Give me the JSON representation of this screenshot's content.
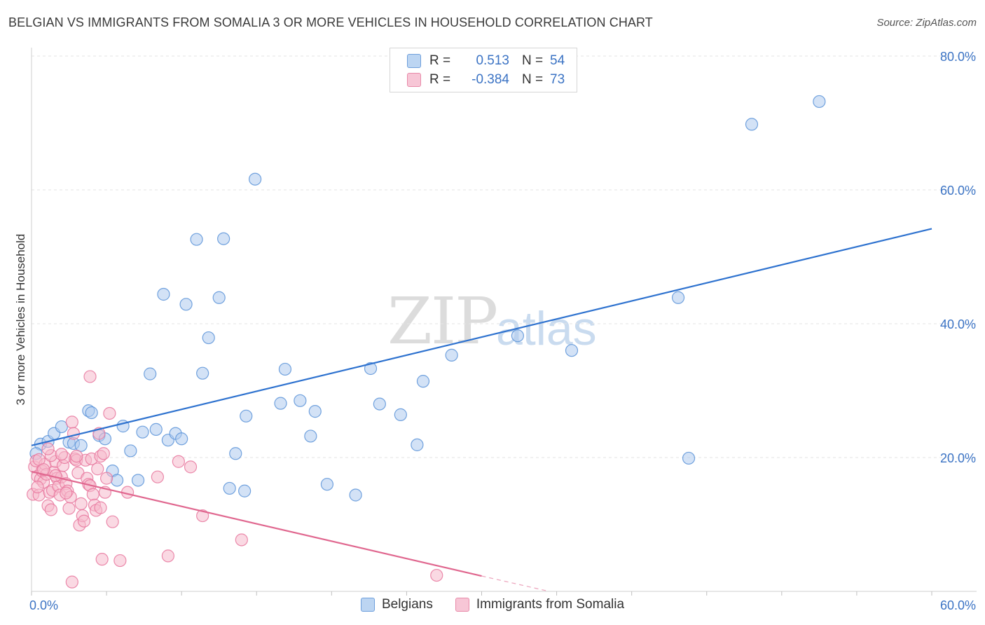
{
  "title": "BELGIAN VS IMMIGRANTS FROM SOMALIA 3 OR MORE VEHICLES IN HOUSEHOLD CORRELATION CHART",
  "source": "Source: ZipAtlas.com",
  "watermark": {
    "zip": "ZIP",
    "atlas": "atlas"
  },
  "colors": {
    "belgians_fill": "#aecbee",
    "belgians_stroke": "#5b93d8",
    "belgians_line": "#2e72cf",
    "somalia_fill": "#f5b9cc",
    "somalia_stroke": "#e8779d",
    "somalia_line": "#e0678f",
    "grid": "#e3e3e3",
    "tick_label": "#3b73c4"
  },
  "legend_top": {
    "rows": [
      {
        "r_label": "R =",
        "r_value": "0.513",
        "n_label": "N =",
        "n_value": "54"
      },
      {
        "r_label": "R =",
        "r_value": "-0.384",
        "n_label": "N =",
        "n_value": "73"
      }
    ]
  },
  "legend_bottom": [
    "Belgians",
    "Immigrants from Somalia"
  ],
  "chart_data": {
    "type": "scatter",
    "xlabel": "",
    "ylabel": "3 or more Vehicles in Household",
    "xlim": [
      0,
      60
    ],
    "ylim": [
      0,
      80
    ],
    "x_tick_labels": [
      {
        "value": 0,
        "label": "0.0%"
      },
      {
        "value": 60,
        "label": "60.0%"
      }
    ],
    "y_tick_labels": [
      {
        "value": 20,
        "label": "20.0%"
      },
      {
        "value": 40,
        "label": "40.0%"
      },
      {
        "value": 60,
        "label": "60.0%"
      },
      {
        "value": 80,
        "label": "80.0%"
      }
    ],
    "grid": true,
    "series": [
      {
        "name": "Belgians",
        "points": [
          [
            0.6,
            22.0
          ],
          [
            1.1,
            22.4
          ],
          [
            1.5,
            23.6
          ],
          [
            2.0,
            24.6
          ],
          [
            2.5,
            22.3
          ],
          [
            2.8,
            22.1
          ],
          [
            3.3,
            21.8
          ],
          [
            3.8,
            27.0
          ],
          [
            4.0,
            26.7
          ],
          [
            4.5,
            23.3
          ],
          [
            4.9,
            22.8
          ],
          [
            5.4,
            18.0
          ],
          [
            5.7,
            16.6
          ],
          [
            6.1,
            24.7
          ],
          [
            6.6,
            21.0
          ],
          [
            7.1,
            16.6
          ],
          [
            7.4,
            23.8
          ],
          [
            7.9,
            32.5
          ],
          [
            8.3,
            24.2
          ],
          [
            8.8,
            44.4
          ],
          [
            9.1,
            22.6
          ],
          [
            9.6,
            23.6
          ],
          [
            10.0,
            22.8
          ],
          [
            10.3,
            42.9
          ],
          [
            11.0,
            52.6
          ],
          [
            11.4,
            32.6
          ],
          [
            11.8,
            37.9
          ],
          [
            12.5,
            43.9
          ],
          [
            12.8,
            52.7
          ],
          [
            13.2,
            15.4
          ],
          [
            13.6,
            20.6
          ],
          [
            14.2,
            15.0
          ],
          [
            14.3,
            26.2
          ],
          [
            14.9,
            61.6
          ],
          [
            16.6,
            28.1
          ],
          [
            16.9,
            33.2
          ],
          [
            17.9,
            28.5
          ],
          [
            18.6,
            23.2
          ],
          [
            18.9,
            26.9
          ],
          [
            19.7,
            16.0
          ],
          [
            21.6,
            14.4
          ],
          [
            22.6,
            33.3
          ],
          [
            23.2,
            28.0
          ],
          [
            24.6,
            26.4
          ],
          [
            25.7,
            21.9
          ],
          [
            26.1,
            31.4
          ],
          [
            28.0,
            35.3
          ],
          [
            32.4,
            38.2
          ],
          [
            36.0,
            36.0
          ],
          [
            43.1,
            43.9
          ],
          [
            43.8,
            19.9
          ],
          [
            48.0,
            69.8
          ],
          [
            52.5,
            73.2
          ],
          [
            0.3,
            20.6
          ]
        ]
      },
      {
        "name": "Immigrants from Somalia",
        "points": [
          [
            0.1,
            14.5
          ],
          [
            0.2,
            18.6
          ],
          [
            0.3,
            19.5
          ],
          [
            0.4,
            17.2
          ],
          [
            0.5,
            14.4
          ],
          [
            0.6,
            16.8
          ],
          [
            0.7,
            18.0
          ],
          [
            0.8,
            16.3
          ],
          [
            0.9,
            19.0
          ],
          [
            1.0,
            17.5
          ],
          [
            1.1,
            12.8
          ],
          [
            1.2,
            14.8
          ],
          [
            1.3,
            12.2
          ],
          [
            1.4,
            15.1
          ],
          [
            1.5,
            17.8
          ],
          [
            1.6,
            19.4
          ],
          [
            1.7,
            16.9
          ],
          [
            1.8,
            15.7
          ],
          [
            1.9,
            14.4
          ],
          [
            2.0,
            17.1
          ],
          [
            2.1,
            18.8
          ],
          [
            2.2,
            20.0
          ],
          [
            2.3,
            16.1
          ],
          [
            2.4,
            15.0
          ],
          [
            2.5,
            12.4
          ],
          [
            2.6,
            14.1
          ],
          [
            2.7,
            25.3
          ],
          [
            2.8,
            23.6
          ],
          [
            2.9,
            19.8
          ],
          [
            3.0,
            19.6
          ],
          [
            3.1,
            17.7
          ],
          [
            3.2,
            9.9
          ],
          [
            3.3,
            13.1
          ],
          [
            3.4,
            11.3
          ],
          [
            3.5,
            10.5
          ],
          [
            3.6,
            19.6
          ],
          [
            3.7,
            16.9
          ],
          [
            3.8,
            16.0
          ],
          [
            3.9,
            15.8
          ],
          [
            4.0,
            19.8
          ],
          [
            4.1,
            14.5
          ],
          [
            4.2,
            12.9
          ],
          [
            4.3,
            12.1
          ],
          [
            4.4,
            18.3
          ],
          [
            4.5,
            23.6
          ],
          [
            4.6,
            20.2
          ],
          [
            4.7,
            4.8
          ],
          [
            4.8,
            20.6
          ],
          [
            4.9,
            14.8
          ],
          [
            5.0,
            16.9
          ],
          [
            5.2,
            26.6
          ],
          [
            5.4,
            10.4
          ],
          [
            5.9,
            4.6
          ],
          [
            6.4,
            14.8
          ],
          [
            8.4,
            17.1
          ],
          [
            9.1,
            5.3
          ],
          [
            9.8,
            19.4
          ],
          [
            10.6,
            18.6
          ],
          [
            11.4,
            11.3
          ],
          [
            14.0,
            7.7
          ],
          [
            27.0,
            2.4
          ],
          [
            2.7,
            1.4
          ],
          [
            3.9,
            32.1
          ],
          [
            0.5,
            19.7
          ],
          [
            1.3,
            20.3
          ],
          [
            0.8,
            18.2
          ],
          [
            2.0,
            20.5
          ],
          [
            1.6,
            17.3
          ],
          [
            3.0,
            20.2
          ],
          [
            0.4,
            15.6
          ],
          [
            2.3,
            14.7
          ],
          [
            1.1,
            21.3
          ],
          [
            4.6,
            12.5
          ]
        ]
      }
    ],
    "trend_lines": [
      {
        "series": "Belgians",
        "x": [
          0,
          60
        ],
        "y": [
          21.8,
          54.2
        ],
        "style": "solid"
      },
      {
        "series": "Immigrants from Somalia",
        "x": [
          0,
          30
        ],
        "y": [
          17.9,
          2.3
        ],
        "style": "solid"
      },
      {
        "series": "Immigrants from Somalia",
        "x": [
          30,
          34.5
        ],
        "y": [
          2.3,
          0.0
        ],
        "style": "dashed"
      }
    ]
  }
}
